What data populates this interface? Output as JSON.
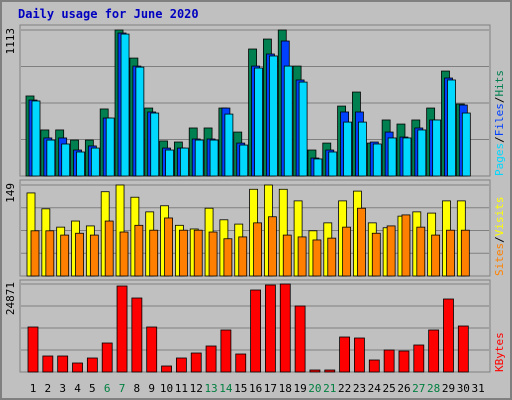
{
  "chart_data": [
    {
      "type": "bar",
      "title": "Daily usage for June 2020",
      "title_color": "#0000c0",
      "ylim": [
        0,
        1113
      ],
      "yticks": [
        1113
      ],
      "legend_separator": "/",
      "series": [
        {
          "name": "Hits",
          "color": "#008050",
          "values": [
            610,
            351,
            351,
            274,
            274,
            511,
            1113,
            899,
            518,
            267,
            259,
            366,
            366,
            518,
            335,
            968,
            1044,
            1113,
            838,
            198,
            251,
            533,
            640,
            251,
            427,
            396,
            427,
            518,
            800,
            549,
            0
          ]
        },
        {
          "name": "Files",
          "color": "#0040ff",
          "values": [
            579,
            290,
            290,
            198,
            229,
            442,
            1090,
            838,
            488,
            213,
            213,
            282,
            282,
            518,
            251,
            838,
            930,
            1029,
            732,
            137,
            198,
            488,
            488,
            259,
            335,
            297,
            366,
            427,
            747,
            541,
            0
          ]
        },
        {
          "name": "Pages",
          "color": "#00d8ff",
          "values": [
            572,
            274,
            244,
            183,
            213,
            442,
            1082,
            830,
            480,
            198,
            213,
            274,
            274,
            472,
            236,
            823,
            915,
            838,
            716,
            130,
            183,
            411,
            411,
            244,
            290,
            290,
            351,
            427,
            732,
            480,
            0
          ]
        }
      ]
    },
    {
      "type": "bar",
      "ylim": [
        0,
        149
      ],
      "yticks": [
        149
      ],
      "legend_separator": "/",
      "series": [
        {
          "name": "Visits",
          "color": "#ffff00",
          "values": [
            136,
            110,
            80,
            90,
            82,
            138,
            149,
            129,
            105,
            115,
            83,
            77,
            111,
            92,
            85,
            142,
            149,
            142,
            123,
            74,
            87,
            123,
            139,
            87,
            79,
            98,
            105,
            103,
            123,
            123,
            0
          ]
        },
        {
          "name": "Sites",
          "color": "#ff8000",
          "values": [
            74,
            74,
            67,
            70,
            67,
            90,
            72,
            83,
            75,
            95,
            75,
            75,
            72,
            61,
            64,
            87,
            97,
            67,
            64,
            59,
            62,
            80,
            111,
            70,
            82,
            100,
            80,
            67,
            75,
            75,
            0
          ]
        }
      ]
    },
    {
      "type": "bar",
      "ylim": [
        0,
        24871
      ],
      "yticks": [
        24871
      ],
      "legend_separator": "/",
      "categories": [
        "1",
        "2",
        "3",
        "4",
        "5",
        "6",
        "7",
        "8",
        "9",
        "10",
        "11",
        "12",
        "13",
        "14",
        "15",
        "16",
        "17",
        "18",
        "19",
        "20",
        "21",
        "22",
        "23",
        "24",
        "25",
        "26",
        "27",
        "28",
        "29",
        "30",
        "31"
      ],
      "category_color": "#000000",
      "highlight_color": "#008040",
      "highlight_indices": [
        5,
        6,
        12,
        13,
        19,
        20,
        26,
        27
      ],
      "series": [
        {
          "name": "KBytes",
          "color": "#ff0000",
          "values": [
            12717,
            4522,
            4522,
            2543,
            3956,
            8195,
            24306,
            20912,
            12717,
            1696,
            3956,
            5369,
            7348,
            11869,
            5087,
            23173,
            24587,
            24871,
            18652,
            565,
            565,
            9891,
            9608,
            3391,
            6217,
            5935,
            7630,
            11869,
            20630,
            13000,
            0
          ]
        }
      ]
    }
  ]
}
